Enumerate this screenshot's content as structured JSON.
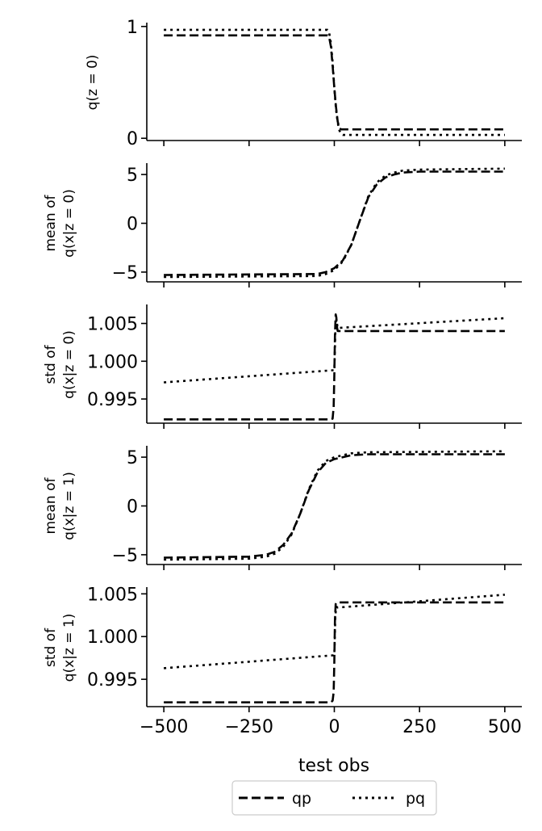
{
  "figure": {
    "xlabel": "test obs",
    "x_ticks": [
      -500,
      -250,
      0,
      250,
      500
    ],
    "x_tick_labels": [
      "−500",
      "−250",
      "0",
      "250",
      "500"
    ],
    "legend": [
      {
        "label": "qp",
        "style": "dashed"
      },
      {
        "label": "pq",
        "style": "dotted"
      }
    ]
  },
  "chart_data": [
    {
      "type": "line",
      "ylabel": [
        "q(z = 0)"
      ],
      "xlim": [
        -550,
        550
      ],
      "ylim": [
        -0.02,
        1.02
      ],
      "yticks": [
        0,
        1
      ],
      "ytick_labels": [
        "0",
        "1"
      ],
      "series": [
        {
          "name": "qp",
          "style": "dashed",
          "x": [
            -500,
            -20,
            -15,
            -10,
            -5,
            0,
            5,
            10,
            15,
            20,
            25,
            500
          ],
          "y": [
            0.92,
            0.92,
            0.9,
            0.82,
            0.65,
            0.45,
            0.28,
            0.15,
            0.09,
            0.08,
            0.08,
            0.08
          ]
        },
        {
          "name": "pq",
          "style": "dotted",
          "x": [
            -500,
            -20,
            -15,
            -10,
            -5,
            0,
            5,
            10,
            15,
            20,
            25,
            30,
            500
          ],
          "y": [
            0.97,
            0.97,
            0.94,
            0.85,
            0.68,
            0.45,
            0.26,
            0.14,
            0.07,
            0.04,
            0.03,
            0.03,
            0.03
          ]
        }
      ]
    },
    {
      "type": "line",
      "ylabel": [
        "mean of",
        "q(x|z = 0)"
      ],
      "xlim": [
        -550,
        550
      ],
      "ylim": [
        -6,
        6
      ],
      "yticks": [
        -5,
        0,
        5
      ],
      "ytick_labels": [
        "−5",
        "0",
        "5"
      ],
      "series": [
        {
          "name": "qp",
          "style": "dashed",
          "x": [
            -500,
            -50,
            -25,
            0,
            25,
            50,
            75,
            100,
            125,
            150,
            175,
            200,
            250,
            500
          ],
          "y": [
            -5.3,
            -5.2,
            -5.0,
            -4.6,
            -3.8,
            -2.2,
            0.3,
            2.7,
            4.0,
            4.7,
            5.0,
            5.2,
            5.3,
            5.3
          ]
        },
        {
          "name": "pq",
          "style": "dotted",
          "x": [
            -500,
            -50,
            -25,
            0,
            25,
            50,
            75,
            100,
            125,
            150,
            175,
            200,
            250,
            500
          ],
          "y": [
            -5.5,
            -5.4,
            -5.2,
            -4.8,
            -3.9,
            -2.2,
            0.3,
            2.8,
            4.2,
            4.9,
            5.2,
            5.4,
            5.5,
            5.6
          ]
        }
      ]
    },
    {
      "type": "line",
      "ylabel": [
        "std of",
        "q(x|z = 0)"
      ],
      "xlim": [
        -550,
        550
      ],
      "ylim": [
        0.9918,
        1.0073
      ],
      "yticks": [
        0.995,
        1.0,
        1.005
      ],
      "ytick_labels": [
        "0.995",
        "1.000",
        "1.005"
      ],
      "series": [
        {
          "name": "qp",
          "style": "dashed",
          "x": [
            -500,
            -10,
            -5,
            -2,
            0,
            2,
            4,
            6,
            8,
            10,
            500
          ],
          "y": [
            0.9923,
            0.9923,
            0.9924,
            0.994,
            0.998,
            1.0035,
            1.0062,
            1.0058,
            1.0045,
            1.004,
            1.004
          ]
        },
        {
          "name": "pq",
          "style": "dotted",
          "x": [
            -500,
            -5,
            0,
            3,
            6,
            10,
            500
          ],
          "y": [
            0.9972,
            0.9988,
            0.9988,
            1.004,
            1.0055,
            1.0044,
            1.0057
          ]
        }
      ]
    },
    {
      "type": "line",
      "ylabel": [
        "mean of",
        "q(x|z = 1)"
      ],
      "xlim": [
        -550,
        550
      ],
      "ylim": [
        -6,
        6
      ],
      "yticks": [
        -5,
        0,
        5
      ],
      "ytick_labels": [
        "−5",
        "0",
        "5"
      ],
      "series": [
        {
          "name": "qp",
          "style": "dashed",
          "x": [
            -500,
            -250,
            -200,
            -175,
            -150,
            -125,
            -100,
            -75,
            -50,
            -25,
            0,
            25,
            50,
            100,
            500
          ],
          "y": [
            -5.3,
            -5.2,
            -5.0,
            -4.7,
            -4.0,
            -2.8,
            -0.8,
            1.6,
            3.4,
            4.4,
            4.8,
            5.0,
            5.2,
            5.3,
            5.3
          ]
        },
        {
          "name": "pq",
          "style": "dotted",
          "x": [
            -500,
            -250,
            -200,
            -175,
            -150,
            -125,
            -100,
            -75,
            -50,
            -25,
            0,
            25,
            50,
            100,
            500
          ],
          "y": [
            -5.5,
            -5.4,
            -5.2,
            -4.9,
            -4.2,
            -2.9,
            -0.8,
            1.7,
            3.6,
            4.6,
            5.0,
            5.2,
            5.4,
            5.5,
            5.6
          ]
        }
      ]
    },
    {
      "type": "line",
      "ylabel": [
        "std of",
        "q(x|z = 1)"
      ],
      "xlim": [
        -550,
        550
      ],
      "ylim": [
        0.9918,
        1.0056
      ],
      "yticks": [
        0.995,
        1.0,
        1.005
      ],
      "ytick_labels": [
        "0.995",
        "1.000",
        "1.005"
      ],
      "series": [
        {
          "name": "qp",
          "style": "dashed",
          "x": [
            -500,
            -10,
            -5,
            -2,
            0,
            2,
            4,
            7,
            10,
            500
          ],
          "y": [
            0.9923,
            0.9923,
            0.9925,
            0.9935,
            0.997,
            1.002,
            1.0038,
            1.004,
            1.004,
            1.004
          ]
        },
        {
          "name": "pq",
          "style": "dotted",
          "x": [
            -500,
            -5,
            0,
            3,
            6,
            10,
            500
          ],
          "y": [
            0.9963,
            0.9978,
            0.9978,
            1.0025,
            1.0035,
            1.0034,
            1.0049
          ]
        }
      ]
    }
  ]
}
